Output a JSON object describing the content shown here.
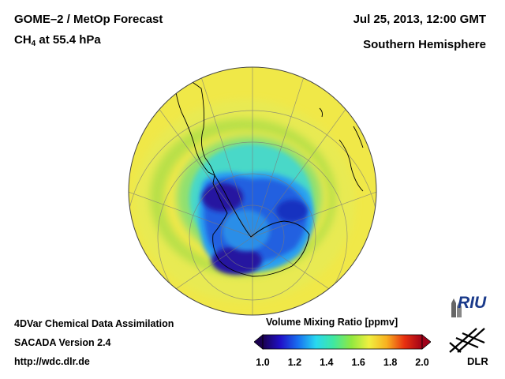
{
  "header": {
    "product": "GOME–2 / MetOp Forecast",
    "species_main": "CH",
    "species_sub": "4",
    "species_rest": " at 55.4 hPa",
    "datetime": "Jul 25, 2013, 12:00 GMT",
    "region": "Southern Hemisphere"
  },
  "footer": {
    "line1": "4DVar Chemical Data Assimilation",
    "line2": "SACADA Version 2.4",
    "line3": "http://wdc.dlr.de"
  },
  "colorbar": {
    "title": "Volume Mixing Ratio [ppmv]",
    "ticks": [
      "1.0",
      "1.2",
      "1.4",
      "1.6",
      "1.8",
      "2.0"
    ],
    "min": 1.0,
    "max": 2.0,
    "stops": [
      "#1a0050",
      "#2010c8",
      "#1870f0",
      "#28d8f0",
      "#40e8a0",
      "#90e840",
      "#f0f040",
      "#f8b020",
      "#e83010",
      "#a00018"
    ]
  },
  "map_values": {
    "ocean_background_ppmv": 1.65,
    "ring_ppmv": 1.5,
    "vortex_edge_ppmv": 1.35,
    "vortex_core_ppmv": 1.15,
    "vortex_min_ppmv": 1.05
  },
  "logos": {
    "riu": "RIU",
    "dlr": "DLR"
  }
}
